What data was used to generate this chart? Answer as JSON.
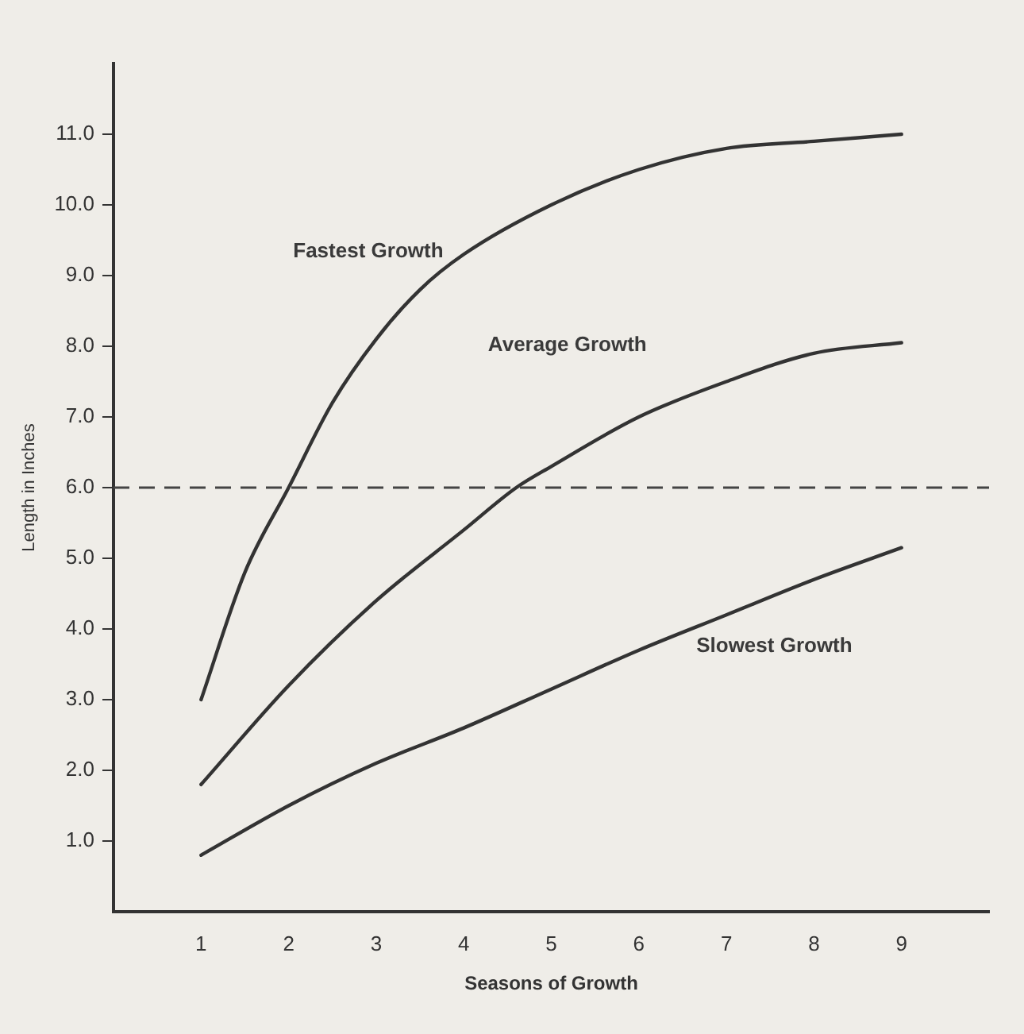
{
  "chart_data": {
    "type": "line",
    "xlabel": "Seasons of Growth",
    "ylabel": "Length in Inches",
    "xlim": [
      0,
      10
    ],
    "xticks": [
      1,
      2,
      3,
      4,
      5,
      6,
      7,
      8,
      9
    ],
    "ylim": [
      0,
      12
    ],
    "yticks": [
      {
        "value": 1,
        "label": "1.0"
      },
      {
        "value": 2,
        "label": "2.0"
      },
      {
        "value": 3,
        "label": "3.0"
      },
      {
        "value": 4,
        "label": "4.0"
      },
      {
        "value": 5,
        "label": "5.0"
      },
      {
        "value": 6,
        "label": "6.0"
      },
      {
        "value": 7,
        "label": "7.0"
      },
      {
        "value": 8,
        "label": "8.0"
      },
      {
        "value": 9,
        "label": "9.0"
      },
      {
        "value": 10,
        "label": "10.0"
      },
      {
        "value": 11,
        "label": "11.0"
      }
    ],
    "grid": false,
    "legend": false,
    "marker": "none",
    "line_style": "solid",
    "ref_lines": [
      {
        "axis": "y",
        "value": 6,
        "color": "#444444",
        "line_style": "dashed"
      }
    ],
    "series": [
      {
        "name": "Fastest Growth",
        "color": "#333333",
        "x": [
          1,
          1.5,
          2,
          2.5,
          3,
          3.5,
          4,
          5,
          6,
          7,
          8,
          9
        ],
        "values": [
          3.0,
          4.8,
          6.0,
          7.2,
          8.1,
          8.8,
          9.3,
          10.0,
          10.5,
          10.8,
          10.9,
          11.0
        ]
      },
      {
        "name": "Average Growth",
        "color": "#333333",
        "x": [
          1,
          2,
          3,
          4,
          4.6,
          5,
          6,
          7,
          8,
          9
        ],
        "values": [
          1.8,
          3.2,
          4.4,
          5.4,
          6.0,
          6.3,
          7.0,
          7.5,
          7.9,
          8.05
        ]
      },
      {
        "name": "Slowest Growth",
        "color": "#333333",
        "x": [
          1,
          2,
          3,
          4,
          5,
          6,
          7,
          8,
          9
        ],
        "values": [
          0.8,
          1.5,
          2.1,
          2.6,
          3.15,
          3.7,
          4.2,
          4.7,
          5.15
        ]
      }
    ]
  }
}
